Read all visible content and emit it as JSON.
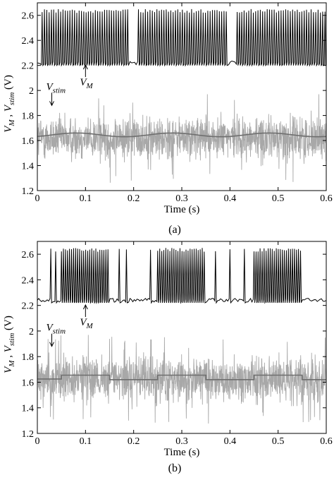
{
  "figure_captions": [
    "(a)",
    "(b)"
  ],
  "chart_data": [
    {
      "type": "line",
      "caption": "(a)",
      "xlabel": "Time (s)",
      "ylabel_parts": {
        "v1": "V",
        "s1": "M",
        "sep": " , ",
        "v2": "V",
        "s2": "stim",
        "unit": " (V)"
      },
      "xlim": [
        0,
        0.6
      ],
      "ylim": [
        1.2,
        2.7
      ],
      "xticks": [
        "0",
        "0.1",
        "0.2",
        "0.3",
        "0.4",
        "0.5",
        "0.6"
      ],
      "yticks": [
        "1.2",
        "1.4",
        "1.6",
        "1.8",
        "2",
        "2.2",
        "2.4",
        "2.6"
      ],
      "grid": false,
      "annotations": [
        {
          "base": "V",
          "sub": "M",
          "target_x": 0.1,
          "target_y": 2.22
        },
        {
          "base": "V",
          "sub": "stim",
          "target_x": 0.03,
          "target_y": 1.88
        }
      ],
      "series": [
        {
          "color": "#000000",
          "values_desc": "membrane voltage V_M",
          "baseline": 2.22,
          "peak": 2.65,
          "bursts": [
            [
              0.01,
              0.19
            ],
            [
              0.21,
              0.395
            ],
            [
              0.415,
              0.6
            ]
          ],
          "spike_period": 0.0048
        },
        {
          "color": "#a8a8a8",
          "values_desc": "noisy stimulus V_stim",
          "noise_center": 1.62,
          "noise_range": [
            1.4,
            1.87
          ],
          "noise_extreme": [
            1.22,
            1.97
          ]
        },
        {
          "color": "#6e6e6e",
          "values_desc": "stimulus mean (sinusoidal)",
          "shape": "sine",
          "mean": 1.645,
          "amplitude": 0.015,
          "period": 0.2
        }
      ]
    },
    {
      "type": "line",
      "caption": "(b)",
      "xlabel": "Time (s)",
      "ylabel_parts": {
        "v1": "V",
        "s1": "M",
        "sep": " , ",
        "v2": "V",
        "s2": "stim",
        "unit": " (V)"
      },
      "xlim": [
        0,
        0.6
      ],
      "ylim": [
        1.2,
        2.7
      ],
      "xticks": [
        "0",
        "0.1",
        "0.2",
        "0.3",
        "0.4",
        "0.5",
        "0.6"
      ],
      "yticks": [
        "1.2",
        "1.4",
        "1.6",
        "1.8",
        "2",
        "2.2",
        "2.4",
        "2.6"
      ],
      "grid": false,
      "annotations": [
        {
          "base": "V",
          "sub": "M",
          "target_x": 0.1,
          "target_y": 2.22
        },
        {
          "base": "V",
          "sub": "stim",
          "target_x": 0.03,
          "target_y": 1.88
        }
      ],
      "series": [
        {
          "color": "#000000",
          "values_desc": "membrane voltage V_M",
          "baseline": 2.24,
          "peak": 2.65,
          "bursts": [
            [
              0.05,
              0.15
            ],
            [
              0.25,
              0.35
            ],
            [
              0.45,
              0.55
            ]
          ],
          "isolated_spikes": [
            0.028,
            0.038,
            0.17,
            0.185,
            0.235,
            0.37,
            0.4,
            0.43
          ],
          "spike_period": 0.0042
        },
        {
          "color": "#a8a8a8",
          "values_desc": "noisy stimulus V_stim",
          "noise_center": 1.62,
          "noise_range": [
            1.4,
            1.87
          ],
          "noise_extreme": [
            1.22,
            1.97
          ]
        },
        {
          "color": "#6e6e6e",
          "values_desc": "stimulus mean (square wave)",
          "shape": "step",
          "steps": [
            [
              0,
              0.05,
              1.625
            ],
            [
              0.05,
              0.15,
              1.655
            ],
            [
              0.15,
              0.25,
              1.62
            ],
            [
              0.25,
              0.35,
              1.655
            ],
            [
              0.35,
              0.45,
              1.62
            ],
            [
              0.45,
              0.55,
              1.655
            ],
            [
              0.55,
              0.6,
              1.62
            ]
          ]
        }
      ]
    }
  ]
}
